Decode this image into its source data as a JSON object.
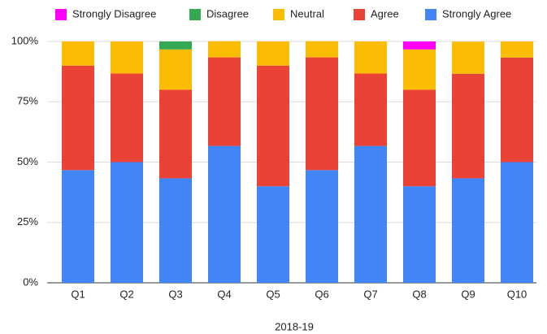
{
  "chart_data": {
    "type": "stacked_bar",
    "x_label": "2018-19",
    "categories": [
      "Q1",
      "Q2",
      "Q3",
      "Q4",
      "Q5",
      "Q6",
      "Q7",
      "Q8",
      "Q9",
      "Q10"
    ],
    "series": [
      {
        "name": "Strongly Disagree",
        "color": "#ff00ff",
        "values": [
          0,
          0,
          0,
          0,
          0,
          0,
          0,
          3.3,
          0,
          0
        ]
      },
      {
        "name": "Disagree",
        "color": "#34a853",
        "values": [
          0,
          0,
          3.3,
          0,
          0,
          0,
          0,
          0,
          0,
          0
        ]
      },
      {
        "name": "Neutral",
        "color": "#fbbc04",
        "values": [
          10,
          13.3,
          16.7,
          6.7,
          10,
          6.7,
          13.3,
          16.7,
          13.3,
          6.7
        ]
      },
      {
        "name": "Agree",
        "color": "#ea4335",
        "values": [
          43.3,
          36.7,
          36.7,
          36.7,
          50,
          46.7,
          30,
          40,
          43.3,
          43.3
        ]
      },
      {
        "name": "Strongly Agree",
        "color": "#4285f4",
        "values": [
          46.7,
          50,
          43.3,
          56.7,
          40,
          46.7,
          56.7,
          40,
          43.3,
          50
        ]
      }
    ],
    "ylim": [
      0,
      100
    ],
    "yticks": [
      {
        "value": 0,
        "label": "0%"
      },
      {
        "value": 25,
        "label": "25%"
      },
      {
        "value": 50,
        "label": "50%"
      },
      {
        "value": 75,
        "label": "75%"
      },
      {
        "value": 100,
        "label": "100%"
      }
    ],
    "grid": true,
    "legend": "top"
  }
}
